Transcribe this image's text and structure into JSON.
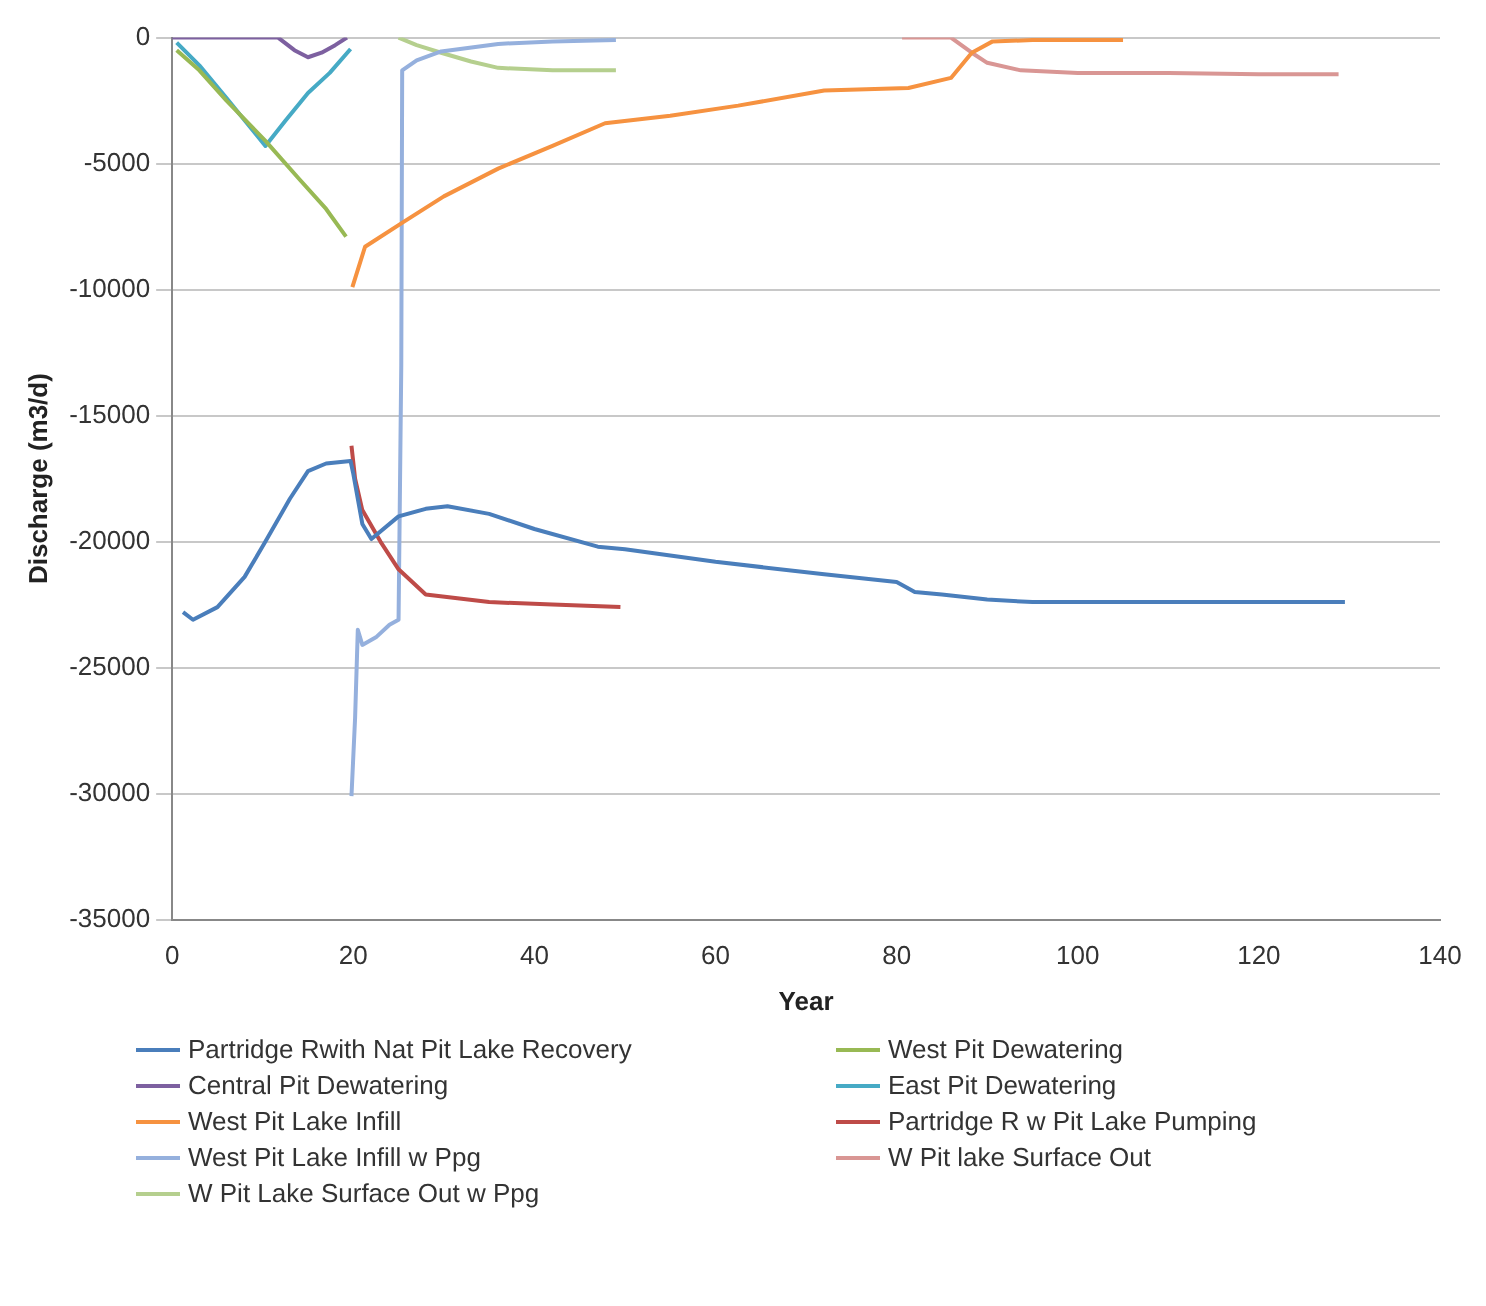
{
  "chart_data": {
    "type": "line",
    "xlabel": "Year",
    "ylabel": "Discharge (m3/d)",
    "xlim": [
      0,
      140
    ],
    "xticks": [
      0,
      20,
      40,
      60,
      80,
      100,
      120,
      140
    ],
    "ylim": [
      -35000,
      0
    ],
    "yticks": [
      -35000,
      -30000,
      -25000,
      -20000,
      -15000,
      -10000,
      -5000,
      0
    ],
    "grid": "y",
    "legend": "bottom",
    "marker": "none",
    "line_style": "solid",
    "series": [
      {
        "name": "Partridge Rwith Nat Pit Lake Recovery",
        "color": "#4a7ebb",
        "x": [
          1.2,
          2.3,
          5,
          8,
          10.3,
          13,
          15,
          17,
          19.7,
          20,
          21,
          22,
          25,
          28,
          30.4,
          35,
          40,
          47,
          50,
          60,
          72,
          80,
          82,
          85,
          90,
          95,
          110,
          129.5
        ],
        "values": [
          -22800,
          -23100,
          -22600,
          -21400,
          -20000,
          -18300,
          -17200,
          -16900,
          -16800,
          -17300,
          -19300,
          -19900,
          -19000,
          -18700,
          -18600,
          -18900,
          -19500,
          -20200,
          -20300,
          -20800,
          -21300,
          -21600,
          -22000,
          -22100,
          -22300,
          -22400,
          -22400,
          -22400
        ]
      },
      {
        "name": "West Pit Dewatering",
        "color": "#98b954",
        "x": [
          0.5,
          3,
          6,
          10.3,
          14,
          17,
          19.2
        ],
        "values": [
          -500,
          -1300,
          -2500,
          -4100,
          -5600,
          -6800,
          -7900
        ]
      },
      {
        "name": "Central Pit Dewatering",
        "color": "#7d60a0",
        "x": [
          0,
          11.7,
          13.5,
          15,
          16.5,
          18,
          19.3
        ],
        "values": [
          0,
          0,
          -500,
          -780,
          -600,
          -300,
          0
        ]
      },
      {
        "name": "East Pit Dewatering",
        "color": "#46aac5",
        "x": [
          0.5,
          3,
          6,
          10.3,
          12.5,
          15,
          17.4,
          19.7
        ],
        "values": [
          -200,
          -1100,
          -2400,
          -4300,
          -3300,
          -2200,
          -1400,
          -450
        ]
      },
      {
        "name": "West Pit Lake Infill",
        "color": "#f69240",
        "x": [
          19.9,
          21.3,
          25.6,
          30,
          36,
          42,
          47.8,
          55,
          62.5,
          72,
          81.3,
          86,
          88.3,
          90.6,
          95,
          105
        ],
        "values": [
          -9900,
          -8300,
          -7300,
          -6300,
          -5200,
          -4300,
          -3400,
          -3100,
          -2700,
          -2100,
          -2000,
          -1600,
          -600,
          -150,
          -100,
          -100
        ]
      },
      {
        "name": "Partridge R w Pit Lake Pumping",
        "color": "#be4b48",
        "x": [
          19.8,
          20.2,
          21,
          23,
          25,
          28,
          35,
          42,
          49.5
        ],
        "values": [
          -16200,
          -17500,
          -18750,
          -20000,
          -21100,
          -22100,
          -22400,
          -22500,
          -22600
        ]
      },
      {
        "name": "West Pit Lake Infill w Ppg",
        "color": "#95b0dd",
        "x": [
          19.8,
          20.2,
          20.5,
          21,
          22.5,
          24,
          25,
          25.3,
          25.4,
          27,
          29.7,
          36,
          42,
          49
        ],
        "values": [
          -30100,
          -27000,
          -23500,
          -24100,
          -23800,
          -23300,
          -23100,
          -13000,
          -1300,
          -900,
          -550,
          -250,
          -150,
          -100
        ]
      },
      {
        "name": "W Pit lake Surface Out",
        "color": "#d99694",
        "x": [
          80.6,
          86,
          88.3,
          90,
          93.7,
          100,
          110,
          120,
          128.8
        ],
        "values": [
          0,
          0,
          -600,
          -1000,
          -1300,
          -1400,
          -1400,
          -1450,
          -1450
        ]
      },
      {
        "name": "W Pit Lake Surface Out w Ppg",
        "color": "#b5cf8e",
        "x": [
          25,
          27,
          29.7,
          33,
          36,
          42,
          49
        ],
        "values": [
          0,
          -300,
          -600,
          -950,
          -1200,
          -1300,
          -1300
        ]
      }
    ]
  }
}
